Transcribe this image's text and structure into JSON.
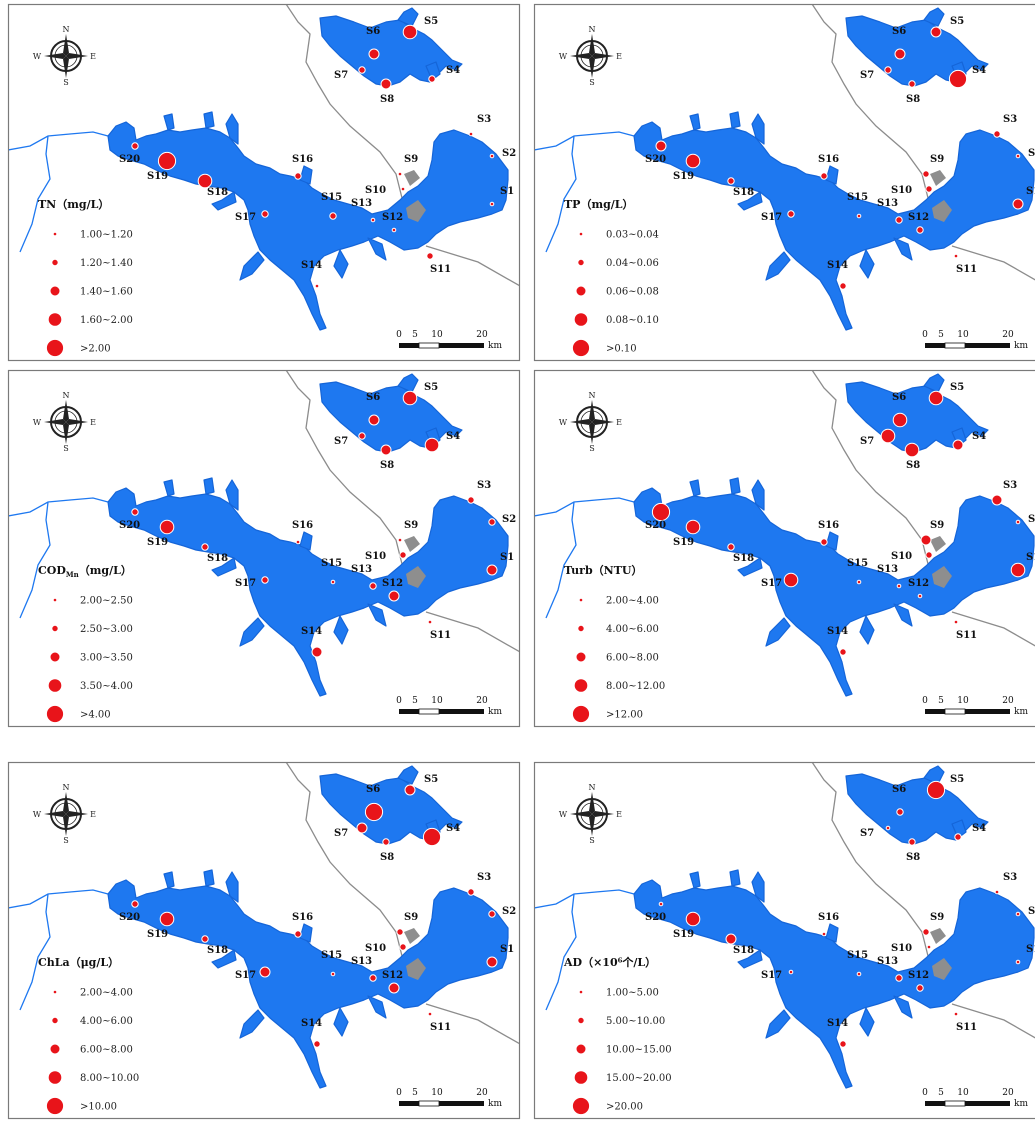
{
  "compass": {
    "n": "N",
    "s": "S",
    "e": "E",
    "w": "W"
  },
  "scalebar": {
    "ticks": [
      "0",
      "5",
      "10",
      "20"
    ],
    "unit": "km"
  },
  "sites": [
    "S1",
    "S2",
    "S3",
    "S4",
    "S5",
    "S6",
    "S7",
    "S8",
    "S9",
    "S10",
    "S11",
    "S12",
    "S13",
    "S14",
    "S15",
    "S16",
    "S17",
    "S18",
    "S19",
    "S20"
  ],
  "panels": [
    {
      "title_main": "TN（mg/L）",
      "title_sub": "",
      "classes": [
        "1.00~1.20",
        "1.20~1.40",
        "1.40~1.60",
        "1.60~2.00",
        ">2.00"
      ],
      "site_class": {
        "S1": 0,
        "S2": 0,
        "S3": 0,
        "S4": 1,
        "S5": 3,
        "S6": 2,
        "S7": 1,
        "S8": 2,
        "S9": 0,
        "S10": 0,
        "S11": 1,
        "S12": 0,
        "S13": 0,
        "S14": 0,
        "S15": 1,
        "S16": 1,
        "S17": 1,
        "S18": 3,
        "S19": 4,
        "S20": 1
      }
    },
    {
      "title_main": "TP（mg/L）",
      "title_sub": "",
      "classes": [
        "0.03~0.04",
        "0.04~0.06",
        "0.06~0.08",
        "0.08~0.10",
        ">0.10"
      ],
      "site_class": {
        "S1": 2,
        "S2": 0,
        "S3": 1,
        "S4": 4,
        "S5": 2,
        "S6": 2,
        "S7": 1,
        "S8": 1,
        "S9": 1,
        "S10": 1,
        "S11": 0,
        "S12": 1,
        "S13": 1,
        "S14": 1,
        "S15": 0,
        "S16": 1,
        "S17": 1,
        "S18": 1,
        "S19": 3,
        "S20": 2
      }
    },
    {
      "title_main": "COD",
      "title_sub": "Mn",
      "title_rest": "（mg/L）",
      "classes": [
        "2.00~2.50",
        "2.50~3.00",
        "3.00~3.50",
        "3.50~4.00",
        ">4.00"
      ],
      "site_class": {
        "S1": 2,
        "S2": 1,
        "S3": 1,
        "S4": 3,
        "S5": 3,
        "S6": 2,
        "S7": 1,
        "S8": 2,
        "S9": 0,
        "S10": 1,
        "S11": 0,
        "S12": 2,
        "S13": 1,
        "S14": 2,
        "S15": 0,
        "S16": 0,
        "S17": 1,
        "S18": 1,
        "S19": 3,
        "S20": 1
      }
    },
    {
      "title_main": "Turb（NTU）",
      "title_sub": "",
      "classes": [
        "2.00~4.00",
        "4.00~6.00",
        "6.00~8.00",
        "8.00~12.00",
        ">12.00"
      ],
      "site_class": {
        "S1": 3,
        "S2": 0,
        "S3": 2,
        "S4": 2,
        "S5": 3,
        "S6": 3,
        "S7": 3,
        "S8": 3,
        "S9": 2,
        "S10": 1,
        "S11": 0,
        "S12": 0,
        "S13": 0,
        "S14": 1,
        "S15": 0,
        "S16": 1,
        "S17": 3,
        "S18": 1,
        "S19": 3,
        "S20": 4
      }
    },
    {
      "title_main": "ChLa（μg/L）",
      "title_sub": "",
      "classes": [
        "2.00~4.00",
        "4.00~6.00",
        "6.00~8.00",
        "8.00~10.00",
        ">10.00"
      ],
      "site_class": {
        "S1": 2,
        "S2": 1,
        "S3": 1,
        "S4": 4,
        "S5": 2,
        "S6": 4,
        "S7": 2,
        "S8": 1,
        "S9": 1,
        "S10": 1,
        "S11": 0,
        "S12": 2,
        "S13": 1,
        "S14": 1,
        "S15": 0,
        "S16": 1,
        "S17": 2,
        "S18": 1,
        "S19": 3,
        "S20": 1
      }
    },
    {
      "title_main": "AD（×10⁶个/L）",
      "title_sub": "",
      "classes": [
        "1.00~5.00",
        "5.00~10.00",
        "10.00~15.00",
        "15.00~20.00",
        ">20.00"
      ],
      "site_class": {
        "S1": 0,
        "S2": 0,
        "S3": 0,
        "S4": 1,
        "S5": 4,
        "S6": 1,
        "S7": 0,
        "S8": 1,
        "S9": 1,
        "S10": 0,
        "S11": 0,
        "S12": 1,
        "S13": 1,
        "S14": 1,
        "S15": 0,
        "S16": 0,
        "S17": 0,
        "S18": 2,
        "S19": 3,
        "S20": 0
      }
    }
  ]
}
